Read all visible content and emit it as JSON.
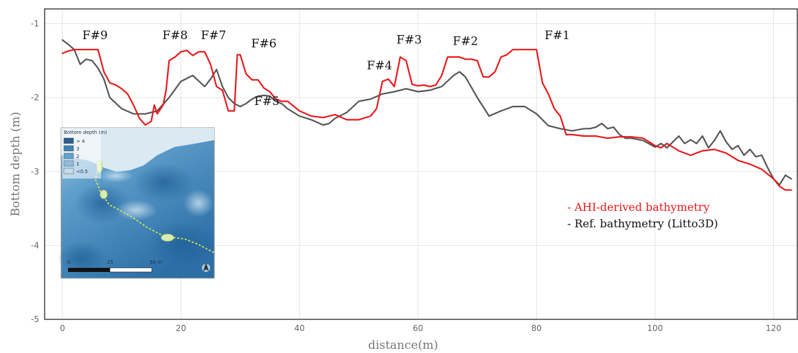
{
  "chart_data": {
    "type": "line",
    "title": "",
    "xlabel": "distance(m)",
    "ylabel": "Bottom depth (m)",
    "xlim": [
      -3,
      124
    ],
    "ylim": [
      -5,
      -0.8
    ],
    "x_ticks": [
      "0",
      "20",
      "40",
      "60",
      "80",
      "100",
      "120"
    ],
    "y_ticks": [
      "-1",
      "-2",
      "-3",
      "-4",
      "-5"
    ],
    "grid": true,
    "legend_placement": "bottom-right",
    "series": [
      {
        "name": "- AHI-derived bathymetry",
        "color": "#e8191b",
        "x": [
          0,
          1,
          2,
          3,
          5,
          6,
          6.5,
          7,
          8,
          9,
          10,
          11,
          12,
          13,
          14,
          15,
          15.5,
          16,
          17,
          17.5,
          18,
          19,
          20,
          21,
          22,
          23,
          24,
          25,
          26,
          27,
          28,
          29,
          29.5,
          30,
          31,
          32,
          33,
          34,
          35,
          36,
          37,
          38,
          40,
          42,
          44,
          46,
          48,
          50,
          52,
          53,
          54,
          55,
          56,
          57,
          58,
          59,
          60,
          61,
          62,
          63,
          64,
          65,
          66,
          67,
          68,
          69,
          70,
          71,
          72,
          73,
          74,
          75,
          76,
          77,
          78,
          79,
          80,
          81,
          82,
          83,
          84,
          85,
          86,
          88,
          90,
          92,
          94,
          96,
          98,
          100,
          101,
          102,
          104,
          106,
          108,
          110,
          112,
          114,
          116,
          118,
          120,
          121,
          122,
          123
        ],
        "values": [
          -1.4,
          -1.37,
          -1.35,
          -1.35,
          -1.35,
          -1.35,
          -1.5,
          -1.65,
          -1.8,
          -1.83,
          -1.88,
          -1.95,
          -2.1,
          -2.28,
          -2.37,
          -2.32,
          -2.1,
          -2.22,
          -2.1,
          -1.9,
          -1.5,
          -1.45,
          -1.38,
          -1.36,
          -1.43,
          -1.38,
          -1.38,
          -1.55,
          -1.85,
          -1.9,
          -2.18,
          -2.18,
          -1.42,
          -1.42,
          -1.68,
          -1.76,
          -1.76,
          -1.87,
          -1.92,
          -2.02,
          -2.05,
          -2.05,
          -2.18,
          -2.25,
          -2.27,
          -2.23,
          -2.3,
          -2.3,
          -2.25,
          -2.15,
          -1.78,
          -1.75,
          -1.85,
          -1.45,
          -1.5,
          -1.82,
          -1.84,
          -1.83,
          -1.85,
          -1.83,
          -1.7,
          -1.45,
          -1.45,
          -1.45,
          -1.48,
          -1.48,
          -1.5,
          -1.72,
          -1.72,
          -1.65,
          -1.45,
          -1.42,
          -1.35,
          -1.35,
          -1.35,
          -1.35,
          -1.35,
          -1.8,
          -1.95,
          -2.15,
          -2.25,
          -2.5,
          -2.5,
          -2.52,
          -2.52,
          -2.55,
          -2.53,
          -2.53,
          -2.55,
          -2.65,
          -2.68,
          -2.62,
          -2.72,
          -2.78,
          -2.72,
          -2.7,
          -2.75,
          -2.85,
          -2.9,
          -2.97,
          -3.1,
          -3.2,
          -3.25,
          -3.25
        ]
      },
      {
        "name": "- Ref. bathymetry (Litto3D)",
        "color": "#555555",
        "x": [
          0,
          1,
          2,
          2.5,
          3,
          4,
          5,
          6,
          7,
          8,
          10,
          12,
          14,
          16,
          18,
          20,
          22,
          24,
          25,
          26,
          27,
          28,
          29,
          30,
          31,
          32,
          33,
          34,
          35,
          36,
          37,
          38,
          39,
          40,
          42,
          44,
          45,
          46,
          48,
          50,
          52,
          54,
          56,
          58,
          60,
          62,
          64,
          66,
          67,
          68,
          70,
          72,
          74,
          76,
          78,
          80,
          82,
          84,
          86,
          88,
          89,
          90,
          91,
          92,
          93,
          94,
          95,
          96,
          98,
          100,
          101,
          102,
          103,
          104,
          105,
          106,
          107,
          108,
          109,
          110,
          111,
          112,
          113,
          114,
          115,
          116,
          117,
          118,
          119,
          120,
          121,
          122,
          123
        ],
        "values": [
          -1.22,
          -1.28,
          -1.35,
          -1.45,
          -1.55,
          -1.48,
          -1.5,
          -1.6,
          -1.75,
          -2.0,
          -2.15,
          -2.22,
          -2.22,
          -2.18,
          -2.0,
          -1.78,
          -1.7,
          -1.85,
          -1.75,
          -1.62,
          -1.85,
          -2.0,
          -2.08,
          -2.12,
          -2.08,
          -2.02,
          -1.98,
          -1.97,
          -1.98,
          -2.05,
          -2.08,
          -2.15,
          -2.2,
          -2.25,
          -2.3,
          -2.37,
          -2.35,
          -2.28,
          -2.2,
          -2.05,
          -2.02,
          -1.95,
          -1.92,
          -1.88,
          -1.92,
          -1.9,
          -1.85,
          -1.7,
          -1.65,
          -1.72,
          -2.0,
          -2.25,
          -2.18,
          -2.12,
          -2.12,
          -2.22,
          -2.38,
          -2.42,
          -2.45,
          -2.42,
          -2.42,
          -2.4,
          -2.35,
          -2.42,
          -2.4,
          -2.5,
          -2.55,
          -2.55,
          -2.58,
          -2.67,
          -2.62,
          -2.68,
          -2.6,
          -2.52,
          -2.62,
          -2.57,
          -2.62,
          -2.52,
          -2.68,
          -2.58,
          -2.45,
          -2.6,
          -2.7,
          -2.65,
          -2.78,
          -2.7,
          -2.8,
          -2.78,
          -2.95,
          -3.1,
          -3.18,
          -3.05,
          -3.1
        ]
      }
    ],
    "annotations": [
      {
        "text": "F#9",
        "x": 5.5,
        "y": -1.21
      },
      {
        "text": "F#8",
        "x": 19,
        "y": -1.21
      },
      {
        "text": "F#7",
        "x": 25.5,
        "y": -1.21
      },
      {
        "text": "F#6",
        "x": 34,
        "y": -1.32
      },
      {
        "text": "F#5",
        "x": 34.5,
        "y": -2.1
      },
      {
        "text": "F#4",
        "x": 53.5,
        "y": -1.62
      },
      {
        "text": "F#3",
        "x": 58.5,
        "y": -1.27
      },
      {
        "text": "F#2",
        "x": 68,
        "y": -1.29
      },
      {
        "text": "F#1",
        "x": 83.5,
        "y": -1.21
      }
    ],
    "inset_map": {
      "legend_title": "Bottom depth (m)",
      "legend_items": [
        "> 4",
        "3",
        "2",
        "1",
        "<0.5"
      ],
      "scale_labels": [
        "0",
        "25",
        "50 m"
      ]
    }
  }
}
